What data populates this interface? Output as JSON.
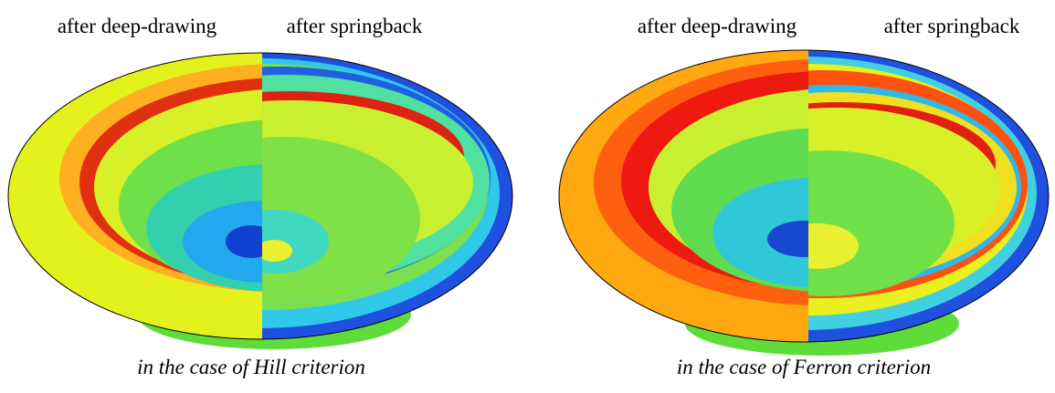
{
  "panels": [
    {
      "left_label": "after deep-drawing",
      "right_label": "after springback",
      "caption": "in the case of Hill criterion"
    },
    {
      "left_label": "after deep-drawing",
      "right_label": "after springback",
      "caption": "in the case of Ferron criterion"
    }
  ]
}
